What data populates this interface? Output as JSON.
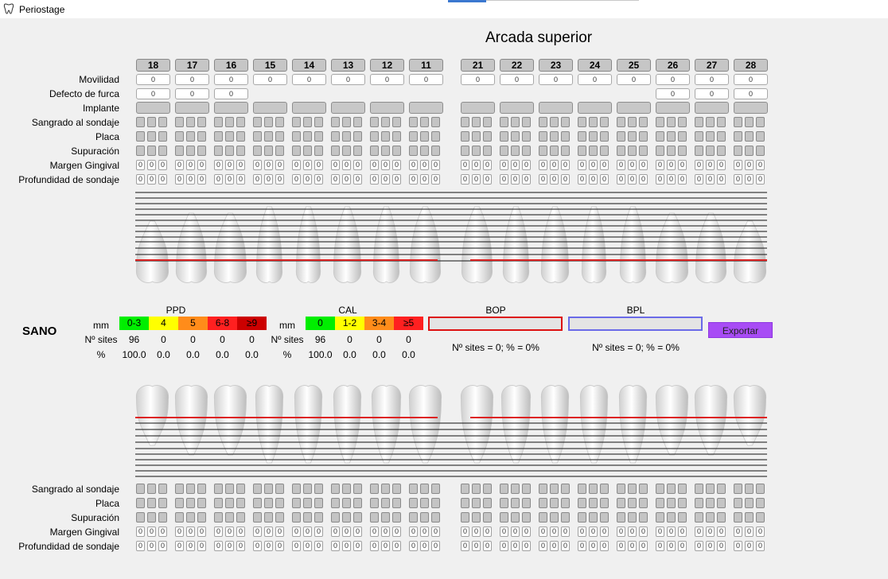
{
  "window": {
    "title": "Periostage"
  },
  "upper": {
    "heading": "Arcada superior",
    "teeth": [
      "18",
      "17",
      "16",
      "15",
      "14",
      "13",
      "12",
      "11",
      "21",
      "22",
      "23",
      "24",
      "25",
      "26",
      "27",
      "28"
    ],
    "labels": {
      "movilidad": "Movilidad",
      "furca": "Defecto de furca",
      "implante": "Implante",
      "sangrado": "Sangrado al sondaje",
      "placa": "Placa",
      "supuracion": "Supuración",
      "margen": "Margen Gingival",
      "profundidad": "Profundidad de sondaje"
    },
    "movilidad_values": [
      "0",
      "0",
      "0",
      "0",
      "0",
      "0",
      "0",
      "0",
      "0",
      "0",
      "0",
      "0",
      "0",
      "0",
      "0",
      "0"
    ],
    "furca_values": [
      "0",
      "0",
      "0",
      "",
      "",
      "",
      "",
      "",
      "",
      "",
      "",
      "",
      "",
      "0",
      "0",
      "0"
    ],
    "margen_value": "0",
    "profundidad_value": "0"
  },
  "summary": {
    "status": "SANO",
    "ppd": {
      "title": "PPD",
      "mm_label": "mm",
      "sites_label": "Nº sites",
      "pct_label": "%",
      "categories": [
        "0-3",
        "4",
        "5",
        "6-8",
        "≥9"
      ],
      "sites": [
        "96",
        "0",
        "0",
        "0",
        "0"
      ],
      "pct": [
        "100.0",
        "0.0",
        "0.0",
        "0.0",
        "0.0"
      ],
      "colors": [
        "#00ee00",
        "#ffff00",
        "#ff8c1a",
        "#ff2020",
        "#cc0000"
      ]
    },
    "cal": {
      "title": "CAL",
      "mm_label": "mm",
      "sites_label": "Nº sites",
      "pct_label": "%",
      "categories": [
        "0",
        "1-2",
        "3-4",
        "≥5"
      ],
      "sites": [
        "96",
        "0",
        "0",
        "0"
      ],
      "pct": [
        "100.0",
        "0.0",
        "0.0",
        "0.0"
      ],
      "colors": [
        "#00ee00",
        "#ffff00",
        "#ff8c1a",
        "#ff2020"
      ]
    },
    "bop": {
      "title": "BOP",
      "text": "Nº sites = 0; % = 0%",
      "color": "#dd1111"
    },
    "bpl": {
      "title": "BPL",
      "text": "Nº sites = 0; % = 0%",
      "color": "#6a6ae8"
    },
    "export_label": "Exportar"
  },
  "lower": {
    "labels": {
      "sangrado": "Sangrado al sondaje",
      "placa": "Placa",
      "supuracion": "Supuración",
      "margen": "Margen Gingival",
      "profundidad": "Profundidad de sondaje"
    },
    "margen_value": "0",
    "profundidad_value": "0"
  },
  "colors": {
    "accent": "#a84cf5",
    "gingival_line": "#dd2222"
  }
}
